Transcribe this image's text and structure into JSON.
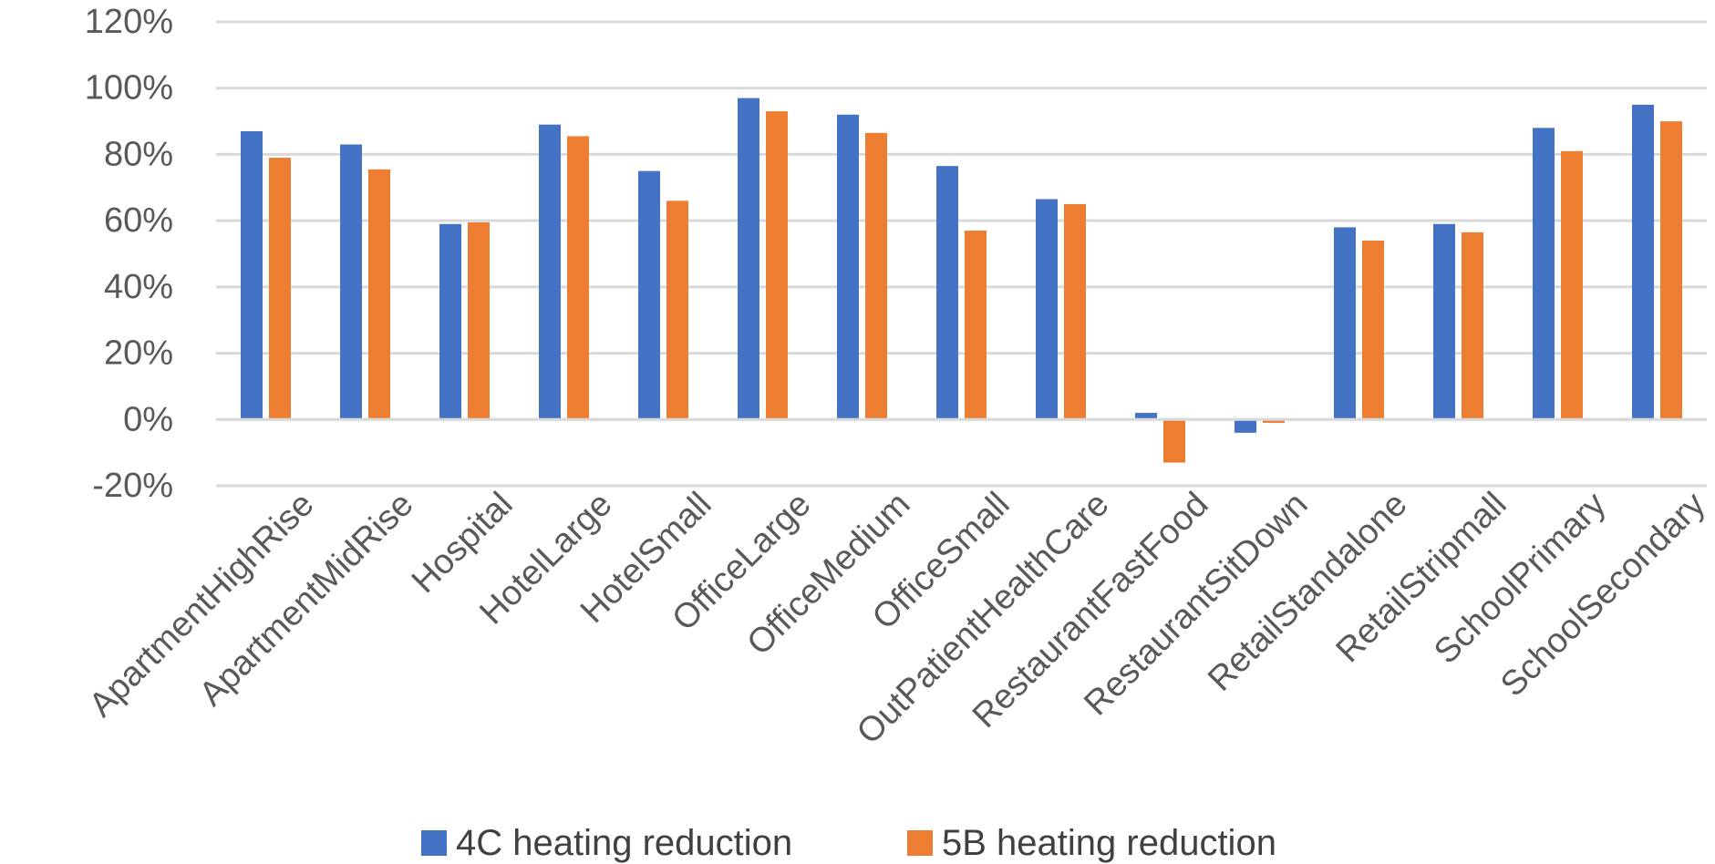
{
  "chart_data": {
    "type": "bar",
    "title": "",
    "xlabel": "",
    "ylabel": "",
    "ylim": [
      -0.2,
      1.2
    ],
    "y_ticks": [
      -0.2,
      0,
      0.2,
      0.4,
      0.6,
      0.8,
      1.0,
      1.2
    ],
    "y_tick_labels": [
      "-20%",
      "0%",
      "20%",
      "40%",
      "60%",
      "80%",
      "100%",
      "120%"
    ],
    "y_format": "percent",
    "grid": true,
    "legend_position": "bottom",
    "categories": [
      "ApartmentHighRise",
      "ApartmentMidRise",
      "Hospital",
      "HotelLarge",
      "HotelSmall",
      "OfficeLarge",
      "OfficeMedium",
      "OfficeSmall",
      "OutPatientHealthCare",
      "RestaurantFastFood",
      "RestaurantSitDown",
      "RetailStandalone",
      "RetailStripmall",
      "SchoolPrimary",
      "SchoolSecondary"
    ],
    "series": [
      {
        "name": "4C heating reduction",
        "color": "#4472C4",
        "values": [
          0.87,
          0.83,
          0.59,
          0.89,
          0.75,
          0.97,
          0.92,
          0.765,
          0.665,
          0.02,
          -0.04,
          0.58,
          0.59,
          0.88,
          0.95
        ]
      },
      {
        "name": "5B heating reduction",
        "color": "#ED7D31",
        "values": [
          0.79,
          0.755,
          0.595,
          0.855,
          0.66,
          0.93,
          0.865,
          0.57,
          0.65,
          -0.13,
          -0.01,
          0.54,
          0.565,
          0.81,
          0.9
        ]
      }
    ]
  }
}
